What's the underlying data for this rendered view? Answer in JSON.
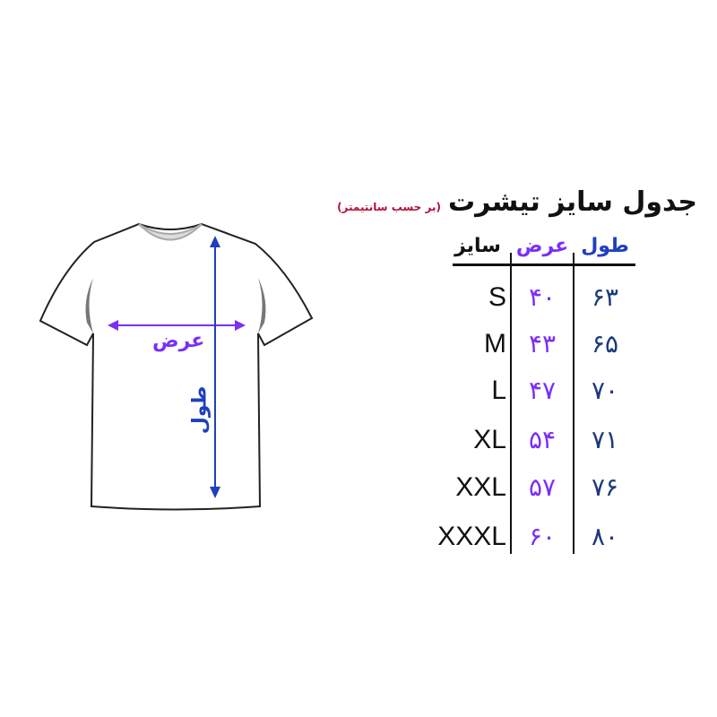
{
  "title": "جدول سایز تیشرت",
  "subtitle": "(بر حسب سانتیمتر)",
  "headers": {
    "size": "سایز",
    "width": "عرض",
    "length": "طول"
  },
  "rows": [
    {
      "size": "S",
      "width": "۴۰",
      "length": "۶۳"
    },
    {
      "size": "M",
      "width": "۴۳",
      "length": "۶۵"
    },
    {
      "size": "L",
      "width": "۴۷",
      "length": "۷۰"
    },
    {
      "size": "XL",
      "width": "۵۴",
      "length": "۷۱"
    },
    {
      "size": "XXL",
      "width": "۵۷",
      "length": "۷۶"
    },
    {
      "size": "XXXL",
      "width": "۶۰",
      "length": "۸۰"
    }
  ],
  "diagram": {
    "width_label": "عرض",
    "length_label": "طول"
  },
  "colors": {
    "width": "#7b2ff7",
    "length": "#1f3fbf",
    "subtitle": "#b0103a"
  }
}
